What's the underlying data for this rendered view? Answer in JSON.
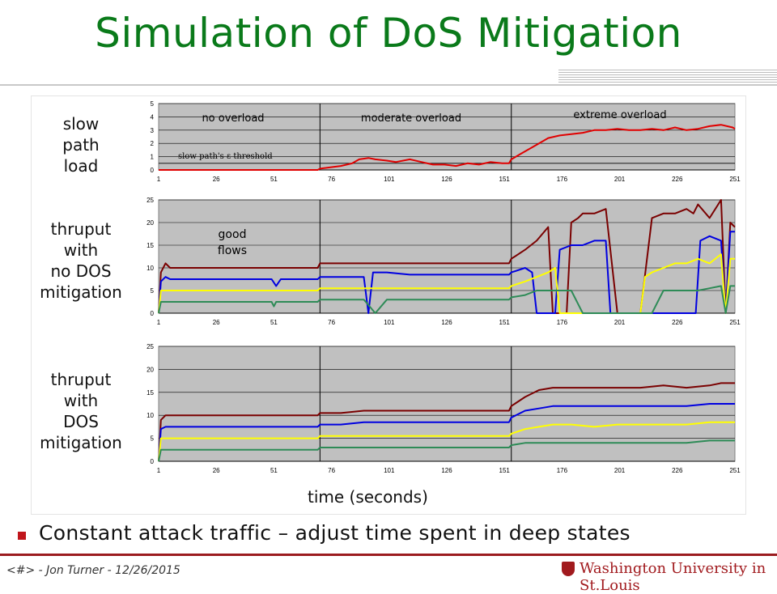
{
  "slide": {
    "title": "Simulation of DoS Mitigation",
    "row_labels": [
      [
        "slow",
        "path",
        "load"
      ],
      [
        "thruput",
        "with",
        "no DOS",
        "mitigation"
      ],
      [
        "thruput",
        "with",
        "DOS",
        "mitigation"
      ]
    ],
    "x_axis_title": "time (seconds)",
    "bullet": "Constant attack traffic – adjust time spent in deep states",
    "footer": "<#> - Jon Turner - 12/26/2015",
    "logo": "Washington University in St.Louis",
    "logo_icon": "shield-icon"
  },
  "chart_data": [
    {
      "type": "line",
      "title": "",
      "x_tick_labels": [
        "1",
        "26",
        "51",
        "76",
        "101",
        "126",
        "151",
        "176",
        "201",
        "226",
        "251"
      ],
      "xlim": [
        1,
        251
      ],
      "ylim": [
        0,
        5
      ],
      "y_ticks": [
        0,
        1,
        2,
        3,
        4,
        5
      ],
      "grid": true,
      "phase_dividers_x": [
        71,
        154
      ],
      "phase_labels": [
        "no overload",
        "moderate overload",
        "extreme overload"
      ],
      "annotation": "slow path's ε threshold",
      "threshold_y": 0.5,
      "series": [
        {
          "color": "#e00000",
          "x": [
            1,
            70,
            71,
            80,
            85,
            88,
            92,
            95,
            100,
            104,
            110,
            115,
            120,
            125,
            130,
            135,
            140,
            145,
            150,
            153,
            154,
            158,
            162,
            166,
            170,
            175,
            180,
            185,
            190,
            195,
            200,
            205,
            210,
            215,
            220,
            225,
            230,
            235,
            240,
            245,
            250,
            251
          ],
          "y": [
            0,
            0,
            0.1,
            0.3,
            0.5,
            0.8,
            0.9,
            0.8,
            0.7,
            0.6,
            0.8,
            0.6,
            0.4,
            0.4,
            0.3,
            0.5,
            0.4,
            0.6,
            0.5,
            0.5,
            0.8,
            1.2,
            1.6,
            2.0,
            2.4,
            2.6,
            2.7,
            2.8,
            3.0,
            3.0,
            3.1,
            3.0,
            3.0,
            3.1,
            3.0,
            3.2,
            3.0,
            3.1,
            3.3,
            3.4,
            3.2,
            3.1
          ]
        }
      ]
    },
    {
      "type": "line",
      "title": "",
      "x_tick_labels": [
        "1",
        "26",
        "51",
        "76",
        "101",
        "126",
        "151",
        "176",
        "201",
        "226",
        "251"
      ],
      "xlim": [
        1,
        251
      ],
      "ylim": [
        0,
        25
      ],
      "y_ticks": [
        0,
        5,
        10,
        15,
        20,
        25
      ],
      "grid": true,
      "phase_dividers_x": [
        71,
        154
      ],
      "annotation": "good flows",
      "series": [
        {
          "color": "#7a0000",
          "x": [
            1,
            2,
            4,
            6,
            70,
            71,
            80,
            90,
            100,
            110,
            120,
            130,
            140,
            150,
            153,
            154,
            160,
            165,
            170,
            172,
            174,
            176,
            178,
            180,
            183,
            185,
            190,
            195,
            200,
            203,
            205,
            210,
            215,
            220,
            225,
            230,
            233,
            235,
            240,
            245,
            247,
            249,
            251
          ],
          "y": [
            0,
            9,
            11,
            10,
            10,
            11,
            11,
            11,
            11,
            11,
            11,
            11,
            11,
            11,
            11,
            12,
            14,
            16,
            19,
            0,
            0,
            0,
            0,
            20,
            21,
            22,
            22,
            23,
            0,
            0,
            0,
            0,
            21,
            22,
            22,
            23,
            22,
            24,
            21,
            25,
            0,
            20,
            19
          ]
        },
        {
          "color": "#0000e0",
          "x": [
            1,
            2,
            4,
            6,
            50,
            52,
            54,
            70,
            71,
            90,
            92,
            94,
            100,
            110,
            120,
            130,
            140,
            150,
            153,
            154,
            160,
            163,
            165,
            170,
            173,
            175,
            180,
            185,
            190,
            195,
            197,
            200,
            205,
            210,
            215,
            225,
            230,
            234,
            236,
            240,
            245,
            247,
            249,
            251
          ],
          "y": [
            0,
            7,
            8,
            7.5,
            7.5,
            6,
            7.5,
            7.5,
            8,
            8,
            0,
            9,
            9,
            8.5,
            8.5,
            8.5,
            8.5,
            8.5,
            8.5,
            9,
            10,
            9,
            0,
            0,
            0,
            14,
            15,
            15,
            16,
            16,
            0,
            0,
            0,
            0,
            0,
            0,
            0,
            0,
            16,
            17,
            16,
            0,
            18,
            18
          ]
        },
        {
          "color": "#ffff00",
          "x": [
            1,
            2,
            4,
            6,
            70,
            71,
            90,
            100,
            110,
            120,
            130,
            140,
            150,
            153,
            154,
            160,
            165,
            170,
            173,
            175,
            180,
            190,
            195,
            200,
            205,
            210,
            212,
            215,
            220,
            225,
            230,
            235,
            240,
            245,
            247,
            249,
            251
          ],
          "y": [
            0,
            5,
            5,
            5,
            5,
            5.5,
            5.5,
            5.5,
            5.5,
            5.5,
            5.5,
            5.5,
            5.5,
            5.5,
            6,
            7,
            8,
            9,
            10,
            0,
            0,
            0,
            0,
            0,
            0,
            0,
            8,
            9,
            10,
            11,
            11,
            12,
            11,
            13,
            0,
            12,
            12
          ]
        },
        {
          "color": "#2e8b57",
          "x": [
            1,
            2,
            4,
            6,
            50,
            51,
            52,
            70,
            71,
            90,
            95,
            100,
            110,
            120,
            130,
            140,
            150,
            153,
            154,
            160,
            165,
            170,
            173,
            175,
            180,
            185,
            190,
            195,
            200,
            205,
            210,
            215,
            220,
            225,
            230,
            235,
            240,
            245,
            247,
            249,
            251
          ],
          "y": [
            0,
            2.5,
            2.5,
            2.5,
            2.5,
            1.5,
            2.5,
            2.5,
            3,
            3,
            0,
            3,
            3,
            3,
            3,
            3,
            3,
            3,
            3.5,
            4,
            5,
            5,
            5,
            5,
            5,
            0,
            0,
            0,
            0,
            0,
            0,
            0,
            5,
            5,
            5,
            5,
            5.5,
            6,
            0,
            6,
            6
          ]
        }
      ]
    },
    {
      "type": "line",
      "title": "",
      "x_tick_labels": [
        "1",
        "26",
        "51",
        "76",
        "101",
        "126",
        "151",
        "176",
        "201",
        "226",
        "251"
      ],
      "xlim": [
        1,
        251
      ],
      "ylim": [
        0,
        25
      ],
      "y_ticks": [
        0,
        5,
        10,
        15,
        20,
        25
      ],
      "grid": true,
      "phase_dividers_x": [
        71,
        154
      ],
      "series": [
        {
          "color": "#7a0000",
          "x": [
            1,
            2,
            4,
            6,
            70,
            71,
            80,
            90,
            100,
            110,
            120,
            130,
            140,
            150,
            153,
            154,
            160,
            166,
            172,
            180,
            190,
            200,
            210,
            220,
            230,
            240,
            245,
            251
          ],
          "y": [
            0,
            9,
            10,
            10,
            10,
            10.5,
            10.5,
            11,
            11,
            11,
            11,
            11,
            11,
            11,
            11,
            12,
            14,
            15.5,
            16,
            16,
            16,
            16,
            16,
            16.5,
            16,
            16.5,
            17,
            17
          ]
        },
        {
          "color": "#0000e0",
          "x": [
            1,
            2,
            4,
            6,
            70,
            71,
            80,
            90,
            100,
            110,
            120,
            130,
            140,
            150,
            153,
            154,
            160,
            166,
            172,
            180,
            190,
            200,
            210,
            220,
            230,
            240,
            245,
            251
          ],
          "y": [
            0,
            7,
            7.5,
            7.5,
            7.5,
            8,
            8,
            8.5,
            8.5,
            8.5,
            8.5,
            8.5,
            8.5,
            8.5,
            8.5,
            9.5,
            11,
            11.5,
            12,
            12,
            12,
            12,
            12,
            12,
            12,
            12.5,
            12.5,
            12.5
          ]
        },
        {
          "color": "#ffff00",
          "x": [
            1,
            2,
            4,
            6,
            70,
            71,
            80,
            90,
            100,
            110,
            120,
            130,
            140,
            150,
            153,
            154,
            160,
            166,
            172,
            180,
            190,
            200,
            210,
            220,
            230,
            240,
            245,
            251
          ],
          "y": [
            0,
            5,
            5,
            5,
            5,
            5.5,
            5.5,
            5.5,
            5.5,
            5.5,
            5.5,
            5.5,
            5.5,
            5.5,
            5.5,
            6,
            7,
            7.5,
            8,
            8,
            7.5,
            8,
            8,
            8,
            8,
            8.5,
            8.5,
            8.5
          ]
        },
        {
          "color": "#2e8b57",
          "x": [
            1,
            2,
            4,
            6,
            70,
            71,
            80,
            90,
            100,
            110,
            120,
            130,
            140,
            150,
            153,
            154,
            160,
            166,
            172,
            180,
            190,
            200,
            210,
            220,
            230,
            240,
            245,
            251
          ],
          "y": [
            0,
            2.5,
            2.5,
            2.5,
            2.5,
            3,
            3,
            3,
            3,
            3,
            3,
            3,
            3,
            3,
            3,
            3.5,
            4,
            4,
            4,
            4,
            4,
            4,
            4,
            4,
            4,
            4.5,
            4.5,
            4.5
          ]
        }
      ]
    }
  ]
}
